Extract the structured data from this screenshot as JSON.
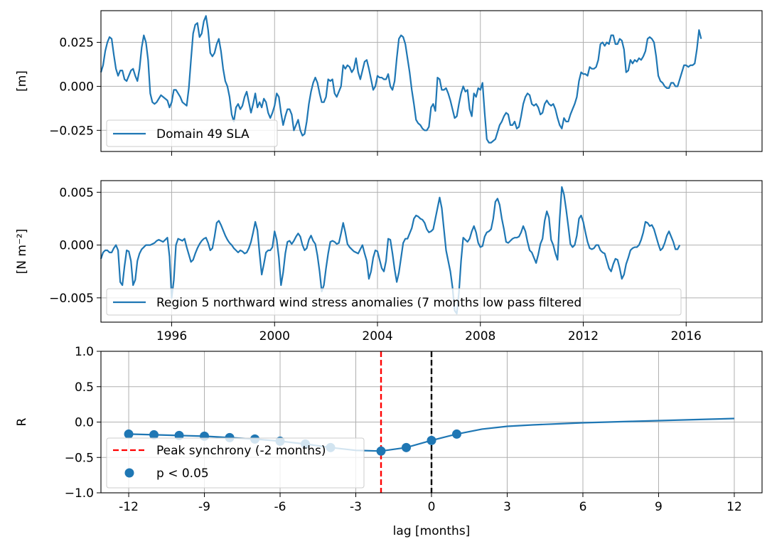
{
  "chart_data": [
    {
      "type": "line",
      "ylabel": "[m]",
      "xlim": [
        1993.25,
        2018.95
      ],
      "ylim": [
        -0.037,
        0.043
      ],
      "grid": true,
      "legend_placement": "lower-left",
      "yticks": [
        0.025,
        0.0,
        -0.025
      ],
      "ytick_labels": [
        "0.025",
        "0.000",
        "−0.025"
      ],
      "xticks": [
        1996,
        2000,
        2004,
        2008,
        2012,
        2016
      ],
      "series": [
        {
          "name": "Domain 49 SLA",
          "color": "#1f77b4",
          "x_start": 1993.25,
          "x_step_months": 1,
          "values": [
            0.008,
            0.012,
            0.02,
            0.025,
            0.028,
            0.027,
            0.018,
            0.01,
            0.006,
            0.009,
            0.009,
            0.004,
            0.003,
            0.006,
            0.009,
            0.01,
            0.006,
            0.003,
            0.01,
            0.022,
            0.029,
            0.025,
            0.015,
            -0.004,
            -0.009,
            -0.01,
            -0.009,
            -0.007,
            -0.005,
            -0.006,
            -0.007,
            -0.008,
            -0.012,
            -0.009,
            -0.002,
            -0.002,
            -0.004,
            -0.006,
            -0.009,
            -0.01,
            -0.011,
            -0.001,
            0.015,
            0.03,
            0.035,
            0.036,
            0.028,
            0.03,
            0.037,
            0.04,
            0.032,
            0.019,
            0.017,
            0.019,
            0.024,
            0.027,
            0.02,
            0.01,
            0.003,
            0.0,
            -0.006,
            -0.016,
            -0.02,
            -0.012,
            -0.01,
            -0.013,
            -0.011,
            -0.006,
            -0.003,
            -0.009,
            -0.015,
            -0.01,
            -0.004,
            -0.012,
            -0.009,
            -0.012,
            -0.007,
            -0.009,
            -0.015,
            -0.018,
            -0.015,
            -0.011,
            -0.004,
            -0.006,
            -0.015,
            -0.022,
            -0.017,
            -0.013,
            -0.013,
            -0.016,
            -0.025,
            -0.022,
            -0.019,
            -0.025,
            -0.028,
            -0.027,
            -0.02,
            -0.01,
            -0.003,
            0.002,
            0.005,
            0.002,
            -0.004,
            -0.009,
            -0.009,
            -0.006,
            0.004,
            0.003,
            0.004,
            -0.004,
            -0.006,
            -0.003,
            0.0,
            0.012,
            0.01,
            0.012,
            0.011,
            0.008,
            0.01,
            0.016,
            0.008,
            0.004,
            0.009,
            0.014,
            0.015,
            0.01,
            0.004,
            -0.002,
            0.0,
            0.006,
            0.005,
            0.005,
            0.004,
            0.004,
            0.007,
            0.0,
            -0.002,
            0.003,
            0.016,
            0.027,
            0.029,
            0.028,
            0.024,
            0.016,
            0.008,
            -0.002,
            -0.01,
            -0.019,
            -0.021,
            -0.022,
            -0.024,
            -0.025,
            -0.025,
            -0.023,
            -0.012,
            -0.01,
            -0.014,
            0.005,
            0.004,
            -0.002,
            -0.002,
            -0.001,
            -0.004,
            -0.008,
            -0.013,
            -0.018,
            -0.017,
            -0.01,
            -0.004,
            0.0,
            -0.003,
            -0.002,
            -0.013,
            -0.017,
            -0.004,
            -0.006,
            -0.001,
            -0.002,
            0.002,
            -0.015,
            -0.03,
            -0.032,
            -0.032,
            -0.031,
            -0.03,
            -0.026,
            -0.022,
            -0.02,
            -0.017,
            -0.015,
            -0.016,
            -0.022,
            -0.022,
            -0.02,
            -0.024,
            -0.023,
            -0.017,
            -0.01,
            -0.006,
            -0.004,
            -0.005,
            -0.01,
            -0.011,
            -0.01,
            -0.012,
            -0.016,
            -0.015,
            -0.01,
            -0.008,
            -0.01,
            -0.011,
            -0.01,
            -0.013,
            -0.018,
            -0.022,
            -0.024,
            -0.018,
            -0.02,
            -0.02,
            -0.016,
            -0.013,
            -0.01,
            -0.006,
            0.003,
            0.008,
            0.007,
            0.007,
            0.006,
            0.011,
            0.01,
            0.01,
            0.011,
            0.015,
            0.024,
            0.025,
            0.023,
            0.025,
            0.024,
            0.029,
            0.029,
            0.024,
            0.024,
            0.027,
            0.026,
            0.021,
            0.008,
            0.009,
            0.015,
            0.013,
            0.015,
            0.014,
            0.016,
            0.015,
            0.017,
            0.02,
            0.027,
            0.028,
            0.027,
            0.025,
            0.017,
            0.006,
            0.003,
            0.002,
            0.0,
            -0.001,
            -0.001,
            0.002,
            0.002,
            0.0,
            0.0,
            0.004,
            0.008,
            0.012,
            0.012,
            0.011,
            0.012,
            0.012,
            0.013,
            0.021,
            0.032,
            0.027
          ]
        }
      ]
    },
    {
      "type": "line",
      "ylabel": "[N m⁻²]",
      "xlim": [
        1993.25,
        2018.95
      ],
      "ylim": [
        -0.0073,
        0.0061
      ],
      "grid": true,
      "legend_placement": "lower-left",
      "yticks": [
        0.005,
        0.0,
        -0.005
      ],
      "ytick_labels": [
        "0.005",
        "0.000",
        "−0.005"
      ],
      "xticks": [
        1996,
        2000,
        2004,
        2008,
        2012,
        2016
      ],
      "xtick_labels": [
        "1996",
        "2000",
        "2004",
        "2008",
        "2012",
        "2016"
      ],
      "series": [
        {
          "name": "Region 5 northward wind stress anomalies (7 months low pass filtered",
          "color": "#1f77b4",
          "x_start": 1993.25,
          "x_step_months": 1,
          "values": [
            -0.0013,
            -0.0007,
            -0.0005,
            -0.0005,
            -0.0007,
            -0.0007,
            -0.0003,
            0.0,
            -0.0005,
            -0.0035,
            -0.0038,
            -0.002,
            -0.0005,
            -0.0006,
            -0.0015,
            -0.0038,
            -0.0033,
            -0.0015,
            -0.0008,
            -0.0004,
            -0.0002,
            0.0,
            0.0,
            0.0,
            0.0001,
            0.0002,
            0.0004,
            0.0005,
            0.0004,
            0.0003,
            0.0005,
            0.0007,
            -0.0011,
            -0.005,
            -0.0033,
            0.0,
            0.0006,
            0.0005,
            0.0004,
            0.0006,
            -0.0002,
            -0.0009,
            -0.0016,
            -0.0014,
            -0.0008,
            -0.0003,
            0.0001,
            0.0004,
            0.0006,
            0.0007,
            0.0002,
            -0.0005,
            -0.0003,
            0.0008,
            0.0021,
            0.0023,
            0.0019,
            0.0014,
            0.0009,
            0.0005,
            0.0002,
            0.0,
            -0.0003,
            -0.0005,
            -0.0007,
            -0.0005,
            -0.0006,
            -0.0008,
            -0.0007,
            -0.0003,
            0.0003,
            0.0012,
            0.0022,
            0.0014,
            -0.0008,
            -0.0028,
            -0.0018,
            -0.0007,
            -0.0005,
            -0.0005,
            -0.0002,
            0.0013,
            0.0005,
            -0.0012,
            -0.0038,
            -0.0026,
            -0.0008,
            0.0003,
            0.0004,
            0.0001,
            0.0004,
            0.0008,
            0.0011,
            0.0008,
            0.0,
            -0.0005,
            -0.0003,
            0.0005,
            0.0009,
            0.0004,
            0.0001,
            -0.001,
            -0.0025,
            -0.0044,
            -0.0038,
            -0.0022,
            -0.0008,
            0.0003,
            0.0004,
            0.0003,
            0.0001,
            0.0002,
            0.0011,
            0.0021,
            0.0012,
            0.0001,
            -0.0002,
            -0.0004,
            -0.0006,
            -0.0007,
            -0.0008,
            -0.0004,
            0.0,
            -0.0008,
            -0.0015,
            -0.0032,
            -0.0025,
            -0.0012,
            -0.0005,
            -0.0006,
            -0.0014,
            -0.0022,
            -0.0025,
            -0.0015,
            0.0006,
            0.0005,
            -0.0008,
            -0.0023,
            -0.0035,
            -0.0026,
            -0.0012,
            0.0002,
            0.0006,
            0.0006,
            0.0011,
            0.0016,
            0.0025,
            0.0028,
            0.0027,
            0.0025,
            0.0024,
            0.0021,
            0.0015,
            0.0012,
            0.0013,
            0.0015,
            0.0025,
            0.0035,
            0.0045,
            0.0035,
            0.0015,
            -0.0005,
            -0.0015,
            -0.0025,
            -0.004,
            -0.0062,
            -0.0065,
            -0.0045,
            -0.0015,
            0.0007,
            0.0005,
            0.0003,
            0.0006,
            0.0013,
            0.0018,
            0.0012,
            0.0002,
            -0.0002,
            -0.0001,
            0.0008,
            0.0012,
            0.0013,
            0.0015,
            0.0025,
            0.0041,
            0.0044,
            0.0038,
            0.0025,
            0.0015,
            0.0003,
            0.0002,
            0.0004,
            0.0006,
            0.0007,
            0.0007,
            0.0008,
            0.0012,
            0.0018,
            0.0013,
            0.0003,
            -0.0005,
            -0.0007,
            -0.0012,
            -0.0017,
            -0.0009,
            0.0001,
            0.0006,
            0.0023,
            0.0032,
            0.0026,
            0.0005,
            0.0,
            -0.0008,
            -0.0014,
            0.0025,
            0.0055,
            0.0048,
            0.0034,
            0.0018,
            0.0001,
            -0.0002,
            0.0,
            0.0009,
            0.0025,
            0.0028,
            0.0022,
            0.0012,
            0.0003,
            -0.0003,
            -0.0004,
            -0.0003,
            0.0,
            0.0,
            -0.0005,
            -0.0007,
            -0.0008,
            -0.0015,
            -0.0022,
            -0.0025,
            -0.0018,
            -0.0013,
            -0.0014,
            -0.0022,
            -0.0032,
            -0.0028,
            -0.0018,
            -0.0012,
            -0.0005,
            -0.0003,
            -0.0002,
            -0.0002,
            0.0,
            0.0005,
            0.0012,
            0.0022,
            0.0021,
            0.0018,
            0.0019,
            0.0015,
            0.0008,
            0.0001,
            -0.0005,
            -0.0003,
            0.0002,
            0.0009,
            0.0013,
            0.0008,
            0.0003,
            -0.0004,
            -0.0004,
            0.0
          ]
        }
      ]
    },
    {
      "type": "line",
      "xlabel": "lag [months]",
      "ylabel": "R",
      "xlim": [
        -13.1,
        13.1
      ],
      "ylim": [
        -1.0,
        1.0
      ],
      "grid": true,
      "legend_placement": "lower-left",
      "xticks": [
        -12,
        -9,
        -6,
        -3,
        0,
        3,
        6,
        9,
        12
      ],
      "xtick_labels": [
        "-12",
        "-9",
        "-6",
        "-3",
        "0",
        "3",
        "6",
        "9",
        "12"
      ],
      "yticks": [
        1.0,
        0.5,
        0.0,
        -0.5,
        -1.0
      ],
      "ytick_labels": [
        "1.0",
        "0.5",
        "0.0",
        "−0.5",
        "−1.0"
      ],
      "series": [
        {
          "name": "",
          "color": "#1f77b4",
          "x": [
            -12,
            -11,
            -10,
            -9,
            -8,
            -7,
            -6,
            -5,
            -4,
            -3,
            -2,
            -1,
            0,
            1,
            2,
            3,
            4,
            5,
            6,
            7,
            8,
            9,
            10,
            11,
            12
          ],
          "values": [
            -0.17,
            -0.18,
            -0.19,
            -0.2,
            -0.22,
            -0.24,
            -0.27,
            -0.31,
            -0.36,
            -0.4,
            -0.41,
            -0.36,
            -0.26,
            -0.17,
            -0.1,
            -0.06,
            -0.04,
            -0.025,
            -0.01,
            0.0,
            0.01,
            0.02,
            0.03,
            0.04,
            0.05
          ]
        }
      ],
      "significant_points": {
        "name": "p < 0.05",
        "color": "#1f77b4",
        "x": [
          -12,
          -11,
          -10,
          -9,
          -8,
          -7,
          -6,
          -5,
          -4,
          -2,
          -1,
          0,
          1
        ],
        "y": [
          -0.17,
          -0.18,
          -0.19,
          -0.2,
          -0.22,
          -0.24,
          -0.27,
          -0.31,
          -0.36,
          -0.41,
          -0.36,
          -0.26,
          -0.17
        ]
      },
      "vlines": [
        {
          "name": "Peak synchrony (-2 months)",
          "x": -2,
          "color": "#ff0000",
          "style": "dashed"
        },
        {
          "name": "",
          "x": 0,
          "color": "#000000",
          "style": "dashed"
        }
      ]
    }
  ]
}
